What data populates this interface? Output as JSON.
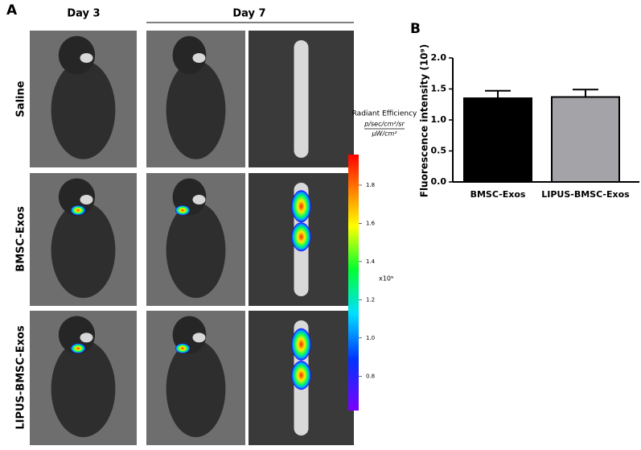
{
  "panel_a": {
    "label": "A",
    "columns": [
      "Day 3",
      "Day 7"
    ],
    "rows": [
      "Saline",
      "BMSC-Exos",
      "LIPUS-BMSC-Exos"
    ],
    "colorbar": {
      "title": "Radiant Efficiency",
      "unit_numerator": "p/sec/cm²/sr",
      "unit_denominator": "μW/cm²",
      "multiplier": "x10⁹",
      "range": [
        0.62,
        1.96
      ],
      "ticks": [
        {
          "value": 0.8,
          "label": "0.8"
        },
        {
          "value": 1.0,
          "label": "1.0"
        },
        {
          "value": 1.2,
          "label": "1.2"
        },
        {
          "value": 1.4,
          "label": "1.4"
        },
        {
          "value": 1.6,
          "label": "1.6"
        },
        {
          "value": 1.8,
          "label": "1.8"
        }
      ]
    }
  },
  "chart_data": {
    "type": "bar",
    "label": "B",
    "y_label": "Fluorescence intensity (10⁹)",
    "categories": [
      "BMSC-Exos",
      "LIPUS-BMSC-Exos"
    ],
    "values": [
      1.35,
      1.37
    ],
    "errors": [
      0.12,
      0.12
    ],
    "colors": [
      "#000000",
      "#a3a3a8"
    ],
    "ylim": [
      0,
      2.0
    ],
    "yticks": [
      {
        "value": 0,
        "label": "0.0"
      },
      {
        "value": 0.5,
        "label": "0.5"
      },
      {
        "value": 1.0,
        "label": "1.0"
      },
      {
        "value": 1.5,
        "label": "1.5"
      },
      {
        "value": 2.0,
        "label": "2.0"
      }
    ]
  }
}
